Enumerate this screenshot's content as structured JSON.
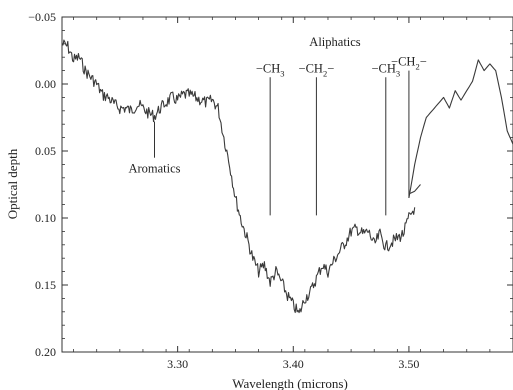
{
  "chart_data": {
    "type": "line",
    "title": "",
    "xlabel": "Wavelength (microns)",
    "ylabel": "Optical depth",
    "xlim": [
      3.2,
      3.59
    ],
    "ylim": [
      0.2,
      -0.05
    ],
    "y_inverted": true,
    "grid": false,
    "x_ticks": [
      {
        "value": 3.3,
        "label": "3.30"
      },
      {
        "value": 3.4,
        "label": "3.40"
      },
      {
        "value": 3.5,
        "label": "3.50"
      }
    ],
    "y_ticks": [
      {
        "value": -0.05,
        "label": "−0.05"
      },
      {
        "value": 0.0,
        "label": "0.00"
      },
      {
        "value": 0.05,
        "label": "0.05"
      },
      {
        "value": 0.1,
        "label": "0.10"
      },
      {
        "value": 0.15,
        "label": "0.15"
      },
      {
        "value": 0.2,
        "label": "0.20"
      }
    ],
    "series": [
      {
        "x": [
          3.2,
          3.205,
          3.21,
          3.215,
          3.22,
          3.225,
          3.23,
          3.235,
          3.24,
          3.245,
          3.25,
          3.255,
          3.26,
          3.265,
          3.27,
          3.275,
          3.28,
          3.285,
          3.29,
          3.295,
          3.3,
          3.305,
          3.31,
          3.315,
          3.32,
          3.325,
          3.33,
          3.335,
          3.34,
          3.345,
          3.35,
          3.355,
          3.36,
          3.365,
          3.37,
          3.375,
          3.38,
          3.385,
          3.39,
          3.395,
          3.4,
          3.405,
          3.41,
          3.415,
          3.42,
          3.425,
          3.43,
          3.435,
          3.44,
          3.445,
          3.45,
          3.455,
          3.46,
          3.465,
          3.47,
          3.475,
          3.48,
          3.485,
          3.49,
          3.495,
          3.5,
          3.505
        ],
        "y": [
          -0.03,
          -0.028,
          -0.018,
          -0.02,
          -0.01,
          -0.005,
          0.0,
          0.008,
          0.01,
          0.015,
          0.018,
          0.018,
          0.02,
          0.015,
          0.018,
          0.022,
          0.024,
          0.018,
          0.014,
          0.01,
          0.012,
          0.008,
          0.008,
          0.01,
          0.012,
          0.014,
          0.012,
          0.018,
          0.04,
          0.06,
          0.085,
          0.102,
          0.115,
          0.13,
          0.14,
          0.135,
          0.148,
          0.14,
          0.148,
          0.158,
          0.165,
          0.172,
          0.16,
          0.155,
          0.145,
          0.135,
          0.14,
          0.132,
          0.125,
          0.118,
          0.11,
          0.108,
          0.112,
          0.11,
          0.12,
          0.112,
          0.122,
          0.118,
          0.115,
          0.112,
          0.1,
          0.092
        ]
      },
      {
        "x": [
          3.5,
          3.505,
          3.51,
          3.515,
          3.52,
          3.525,
          3.53,
          3.535,
          3.54,
          3.545,
          3.55,
          3.555,
          3.56,
          3.565,
          3.57,
          3.575,
          3.58,
          3.585,
          3.59
        ],
        "y": [
          0.085,
          0.06,
          0.04,
          0.025,
          0.02,
          0.015,
          0.01,
          0.018,
          0.005,
          0.012,
          0.005,
          -0.002,
          -0.018,
          -0.01,
          -0.015,
          -0.01,
          0.01,
          0.035,
          0.045
        ]
      },
      {
        "x": [
          3.5,
          3.505,
          3.51
        ],
        "y": [
          0.082,
          0.08,
          0.075
        ]
      }
    ],
    "annotations": [
      {
        "text": "Aromatics",
        "x": 3.28,
        "y_top": 0.028,
        "y_bottom": 0.055
      },
      {
        "text": "−CH",
        "sub": "3",
        "tail": "",
        "x": 3.38,
        "y_top": -0.005,
        "y_bottom": 0.098
      },
      {
        "text": "−CH",
        "sub": "2",
        "tail": "−",
        "x": 3.42,
        "y_top": -0.005,
        "y_bottom": 0.098
      },
      {
        "text": "−CH",
        "sub": "3",
        "tail": "",
        "x": 3.48,
        "y_top": -0.005,
        "y_bottom": 0.098
      },
      {
        "text": "−CH",
        "sub": "2",
        "tail": "−",
        "x": 3.5,
        "y_top": -0.01,
        "y_bottom": 0.085
      }
    ],
    "group_label": "Aliphatics"
  }
}
